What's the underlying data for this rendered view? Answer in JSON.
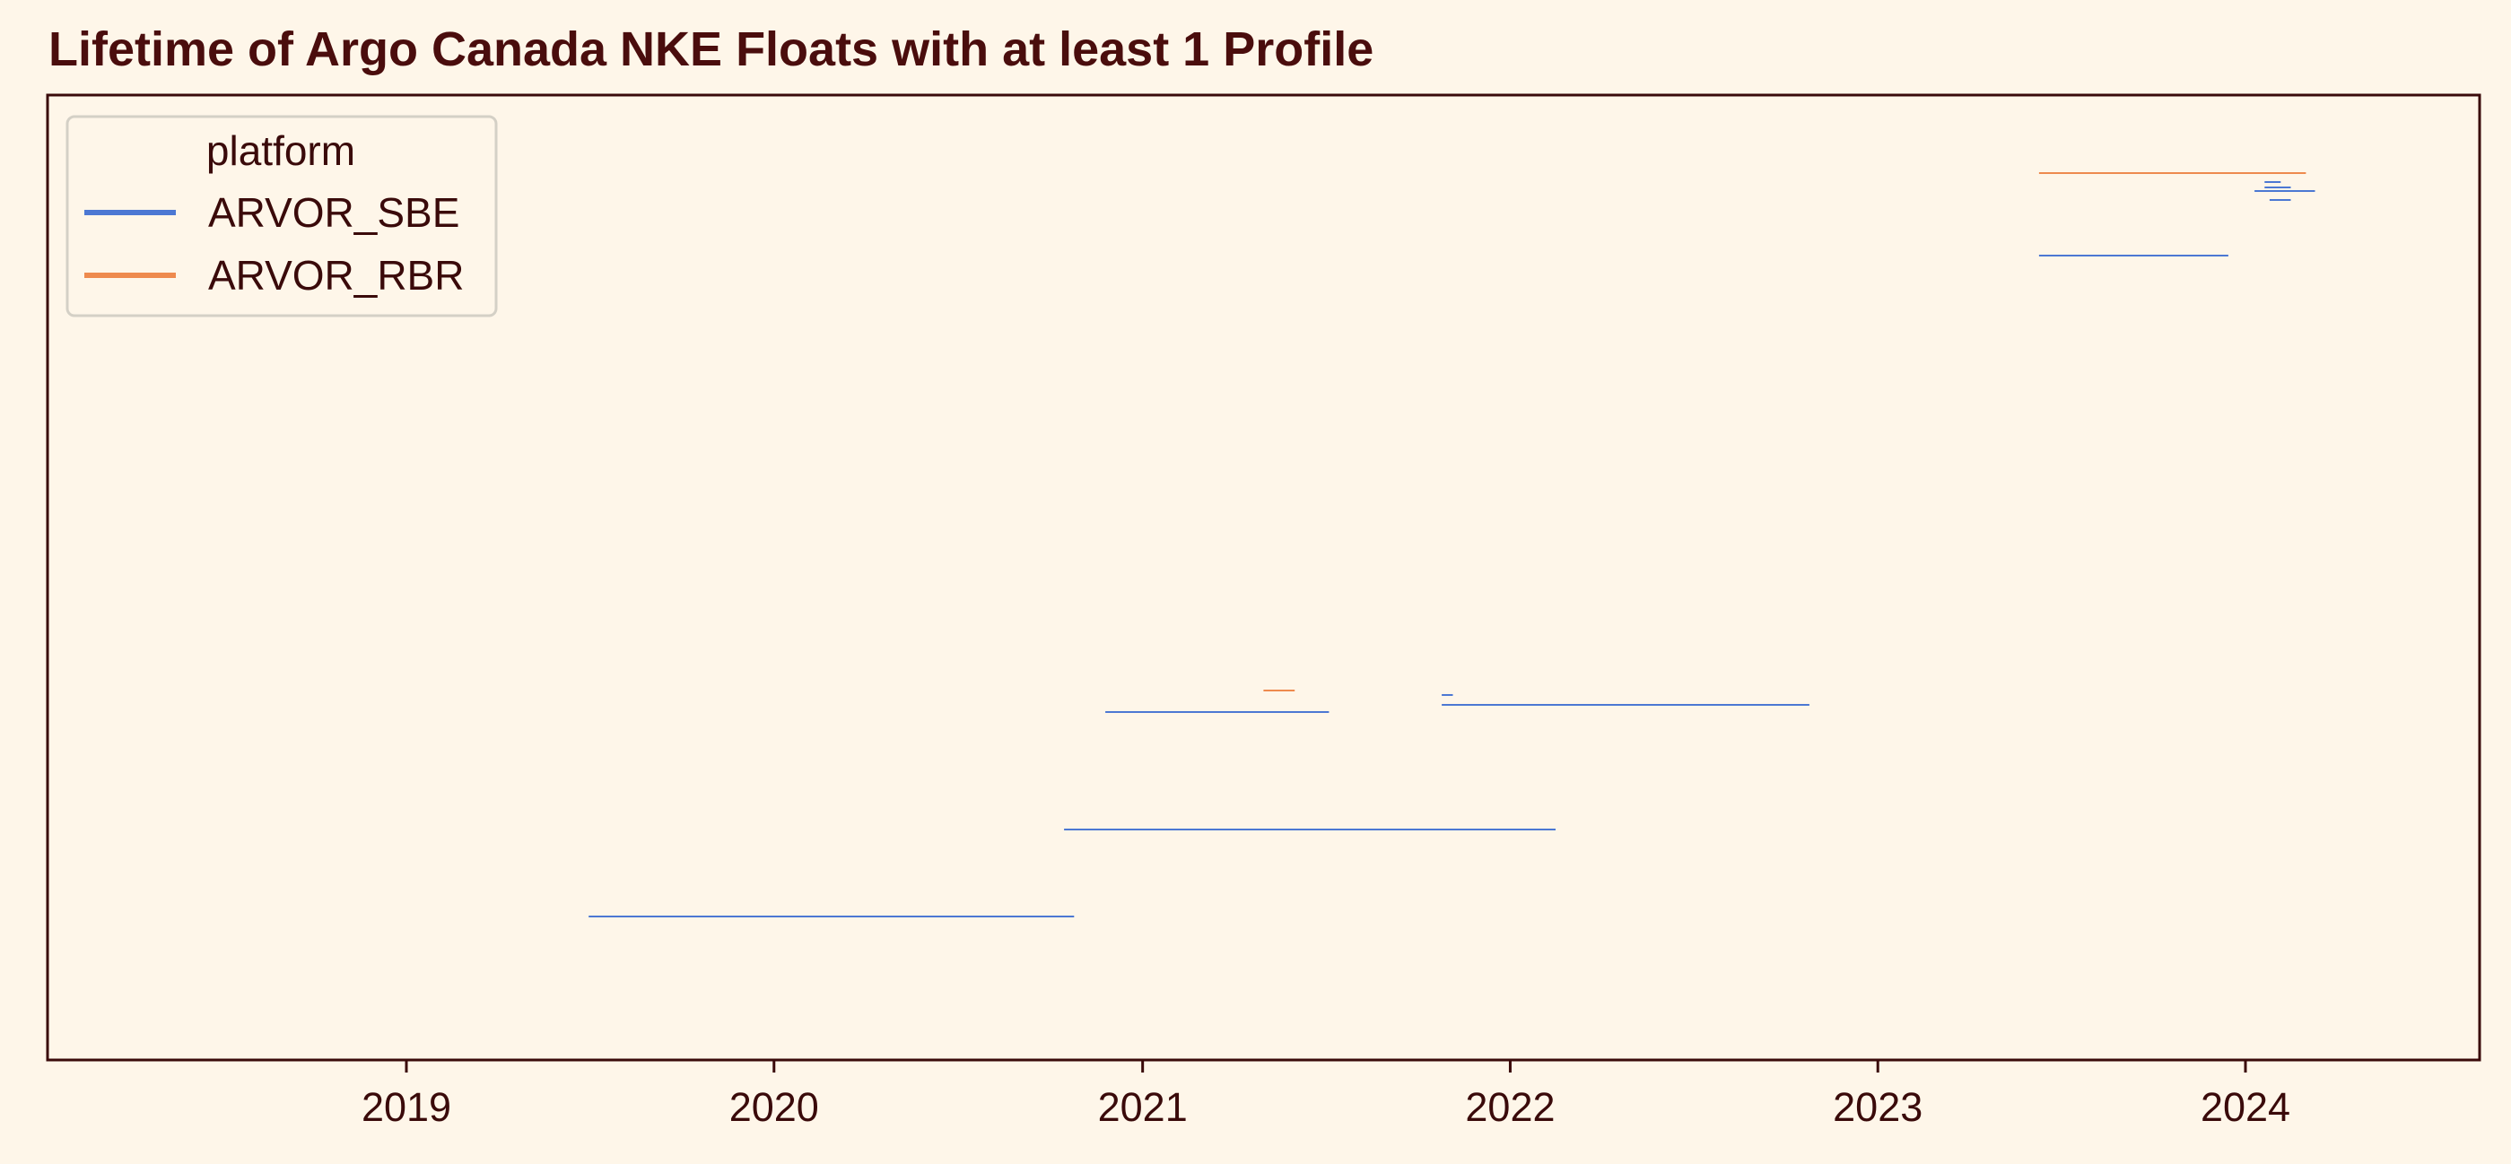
{
  "chart_data": {
    "type": "line",
    "title": "Lifetime of Argo Canada NKE Floats with at least 1 Profile",
    "xlabel": "",
    "ylabel": "",
    "x_axis_type": "date",
    "xlim": [
      "2018-01-01",
      "2024-08-15"
    ],
    "xticks": [
      "2019",
      "2020",
      "2021",
      "2022",
      "2023",
      "2024"
    ],
    "yticks_shown": false,
    "grid": false,
    "legend": {
      "title": "platform",
      "placement": "top-left",
      "entries": [
        {
          "name": "ARVOR_SBE",
          "color": "#4c78d3"
        },
        {
          "name": "ARVOR_RBR",
          "color": "#ee8a4e"
        }
      ]
    },
    "colors": {
      "background": "#fef6e9",
      "axes": "#3a0a0a",
      "title": "#4a0d0d"
    },
    "series": [
      {
        "name": "ARVOR_SBE",
        "color": "#4c78d3",
        "segments": [
          {
            "start": "2019-07-01",
            "end": "2020-10-25"
          },
          {
            "start": "2020-10-15",
            "end": "2022-02-15"
          },
          {
            "start": "2020-11-25",
            "end": "2021-07-05"
          },
          {
            "start": "2021-10-25",
            "end": "2021-11-05"
          },
          {
            "start": "2021-10-25",
            "end": "2022-10-25"
          },
          {
            "start": "2023-06-10",
            "end": "2023-12-15"
          },
          {
            "start": "2024-01-20",
            "end": "2024-02-05"
          },
          {
            "start": "2024-01-20",
            "end": "2024-02-15"
          },
          {
            "start": "2024-01-10",
            "end": "2024-03-10"
          },
          {
            "start": "2024-01-25",
            "end": "2024-02-15"
          }
        ]
      },
      {
        "name": "ARVOR_RBR",
        "color": "#ee8a4e",
        "segments": [
          {
            "start": "2021-05-01",
            "end": "2021-06-01"
          },
          {
            "start": "2023-06-10",
            "end": "2024-03-01"
          }
        ]
      }
    ]
  }
}
